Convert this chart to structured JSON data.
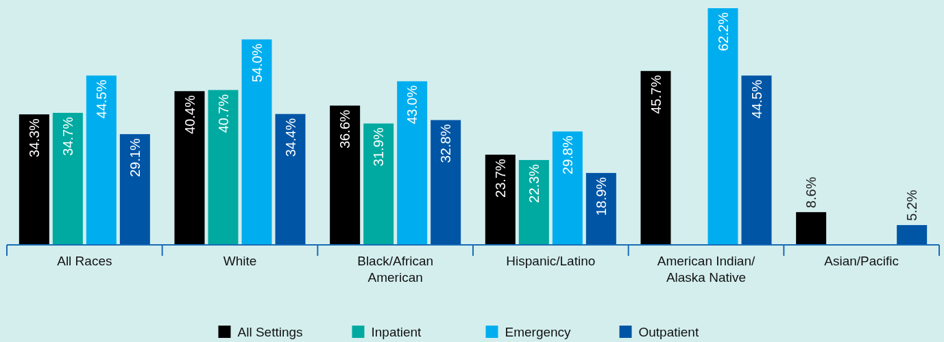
{
  "chart_data": {
    "type": "bar",
    "categories": [
      "All Races",
      "White",
      "Black/African American",
      "Hispanic/Latino",
      "American Indian/Alaska Native",
      "Asian/Pacific"
    ],
    "series": [
      {
        "name": "All Settings",
        "color": "#000000",
        "values": [
          34.3,
          40.4,
          36.6,
          23.7,
          45.7,
          8.6
        ],
        "value_labels": [
          "34.3%",
          "40.4%",
          "36.6%",
          "23.7%",
          "45.7%",
          "8.6%"
        ]
      },
      {
        "name": "Inpatient",
        "color": "#00aaa0",
        "values": [
          34.7,
          40.7,
          31.9,
          22.3,
          null,
          null
        ],
        "value_labels": [
          "34.7%",
          "40.7%",
          "31.9%",
          "22.3%",
          null,
          null
        ]
      },
      {
        "name": "Emergency",
        "color": "#00aeef",
        "values": [
          44.5,
          54.0,
          43.0,
          29.8,
          62.2,
          null
        ],
        "value_labels": [
          "44.5%",
          "54.0%",
          "43.0%",
          "29.8%",
          "62.2%",
          null
        ]
      },
      {
        "name": "Outpatient",
        "color": "#0055a5",
        "values": [
          29.1,
          34.4,
          32.8,
          18.9,
          44.5,
          5.2
        ],
        "value_labels": [
          "29.1%",
          "34.4%",
          "32.8%",
          "18.9%",
          "44.5%",
          "5.2%"
        ]
      }
    ],
    "legend": "bottom"
  }
}
